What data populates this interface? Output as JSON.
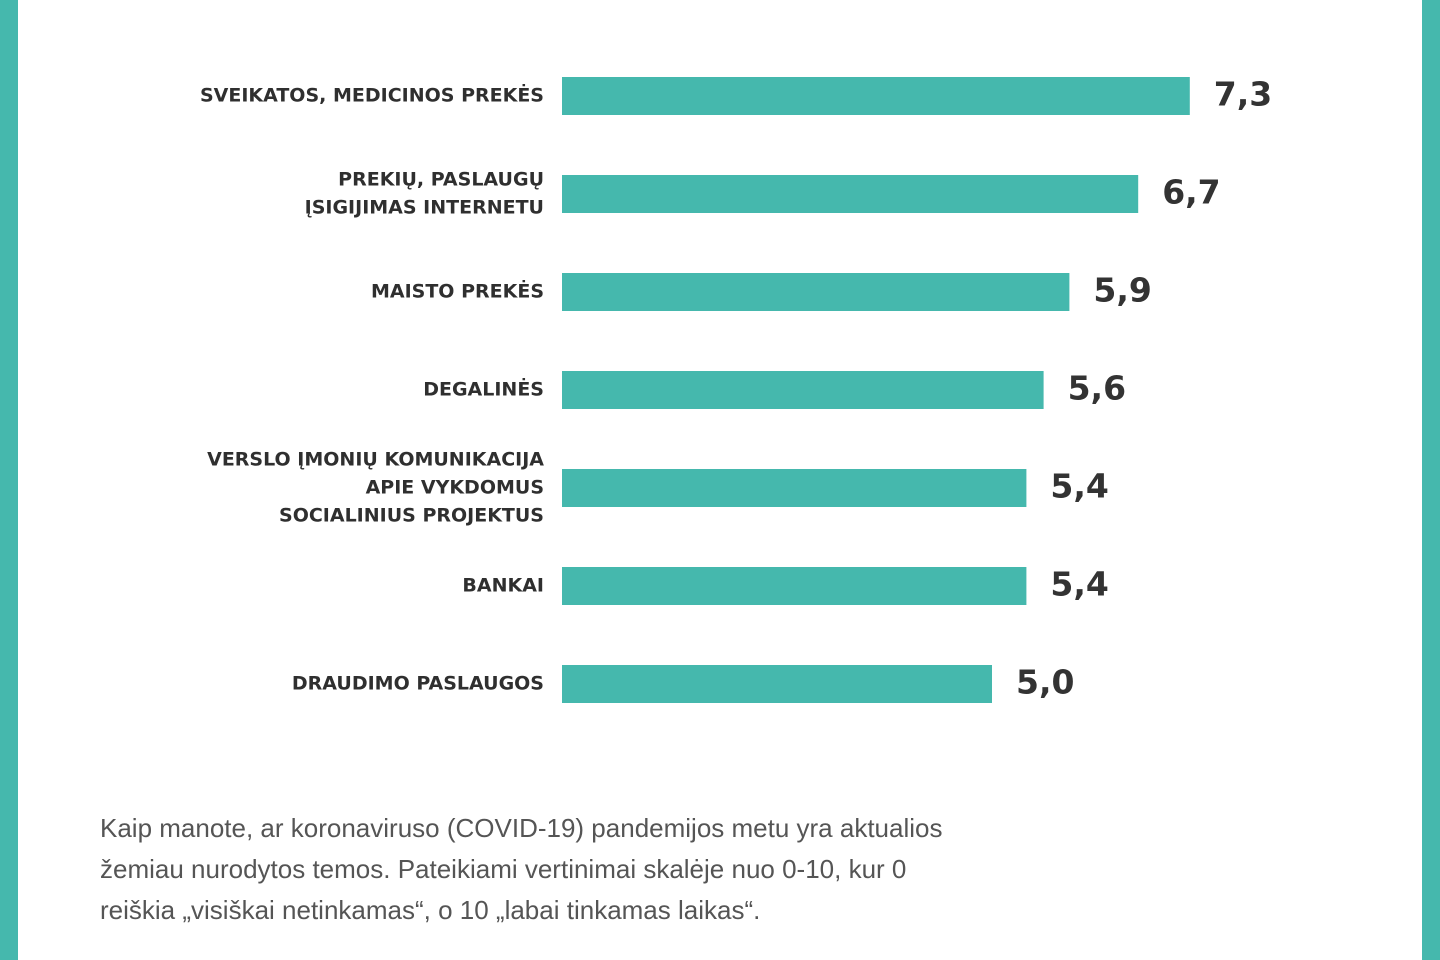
{
  "chart_data": {
    "type": "barh",
    "categories": [
      [
        "SVEIKATOS, MEDICINOS PREKĖS"
      ],
      [
        "PREKIŲ, PASLAUGŲ",
        "ĮSIGIJIMAS INTERNETU"
      ],
      [
        "MAISTO PREKĖS"
      ],
      [
        "DEGALINĖS"
      ],
      [
        "VERSLO ĮMONIŲ KOMUNIKACIJA",
        "APIE VYKDOMUS",
        "SOCIALINIUS PROJEKTUS"
      ],
      [
        "BANKAI"
      ],
      [
        "DRAUDIMO PASLAUGOS"
      ]
    ],
    "values": [
      7.3,
      6.7,
      5.9,
      5.6,
      5.4,
      5.4,
      5.0
    ],
    "value_labels": [
      "7,3",
      "6,7",
      "5,9",
      "5,6",
      "5,4",
      "5,4",
      "5,0"
    ],
    "color": "#45b8ad",
    "note": [
      "Kaip manote, ar koronaviruso (COVID-19) pandemijos metu yra aktualios",
      "žemiau nurodytos temos. Pateikiami vertinimai skalėje nuo 0-10, kur 0",
      "reiškia „visiškai netinkamas“, o 10 „labai tinkamas laikas“."
    ]
  }
}
